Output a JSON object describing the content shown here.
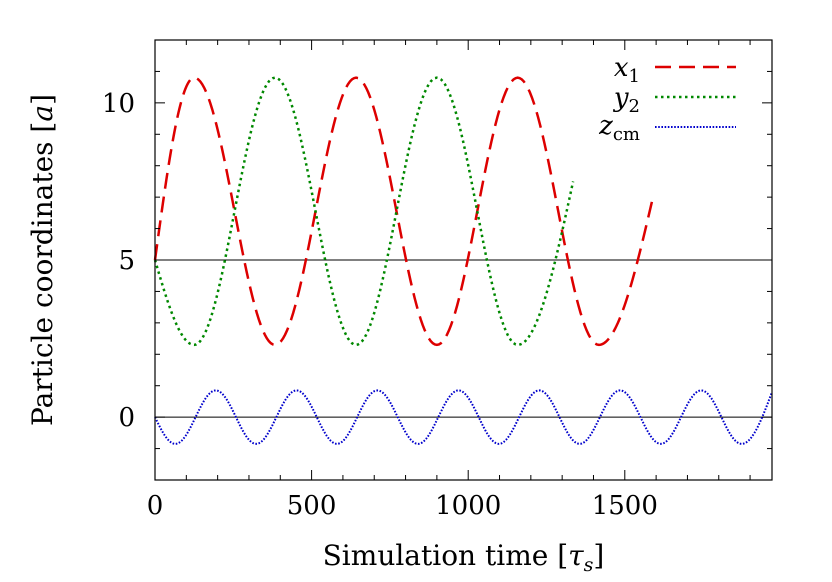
{
  "chart_data": {
    "type": "line",
    "xlabel_main": "Simulation time [",
    "xlabel_symbol": "τ",
    "xlabel_subscript": "s",
    "xlabel_close": "]",
    "ylabel_main": "Particle coordinates [",
    "ylabel_symbol": "a",
    "ylabel_close": "]",
    "xlim": [
      0,
      1970
    ],
    "ylim": [
      -2,
      12
    ],
    "xticks": [
      0,
      500,
      1000,
      1500
    ],
    "yticks": [
      0,
      5,
      10
    ],
    "reference_lines": [
      0,
      5
    ],
    "grid": false,
    "legend_position": "top-right",
    "series": [
      {
        "name": "x",
        "sub": "1",
        "color": "#dd0000",
        "dash": "dashed",
        "x_start": 0,
        "x_end": 1590,
        "center": 6.55,
        "amplitude": 4.25,
        "period": 517,
        "phase_offset": 0,
        "peak_first": true,
        "points": [
          [
            0,
            5
          ],
          [
            125,
            10.8
          ],
          [
            383,
            2.3
          ],
          [
            642,
            10.8
          ],
          [
            900,
            2.3
          ],
          [
            1158,
            10.8
          ],
          [
            1417,
            2.3
          ],
          [
            1590,
            7.0
          ]
        ]
      },
      {
        "name": "y",
        "sub": "2",
        "color": "#008800",
        "dash": "dotted",
        "x_start": 0,
        "x_end": 1335,
        "center": 6.55,
        "amplitude": 4.25,
        "period": 517,
        "phase_offset": 0,
        "peak_first": false,
        "points": [
          [
            0,
            5
          ],
          [
            125,
            2.3
          ],
          [
            383,
            10.8
          ],
          [
            642,
            2.3
          ],
          [
            900,
            10.8
          ],
          [
            1158,
            2.3
          ],
          [
            1335,
            7.5
          ]
        ]
      },
      {
        "name": "z",
        "sub": "cm",
        "color": "#0000cc",
        "dash": "densely-dotted",
        "x_start": 0,
        "x_end": 1970,
        "center": 0,
        "amplitude": 0.85,
        "period": 258.5,
        "phase_offset": 0,
        "peak_first": false,
        "points": [
          [
            0,
            0
          ],
          [
            65,
            -0.85
          ],
          [
            194,
            0.85
          ],
          [
            323,
            -0.85
          ],
          [
            452,
            0.85
          ],
          [
            581,
            -0.85
          ],
          [
            710,
            0.85
          ],
          [
            840,
            -0.85
          ],
          [
            969,
            0.85
          ],
          [
            1098,
            -0.85
          ],
          [
            1227,
            0.85
          ],
          [
            1356,
            -0.85
          ],
          [
            1485,
            0.85
          ],
          [
            1615,
            -0.85
          ],
          [
            1744,
            0.85
          ],
          [
            1873,
            -0.85
          ],
          [
            1970,
            0.8
          ]
        ]
      }
    ]
  }
}
